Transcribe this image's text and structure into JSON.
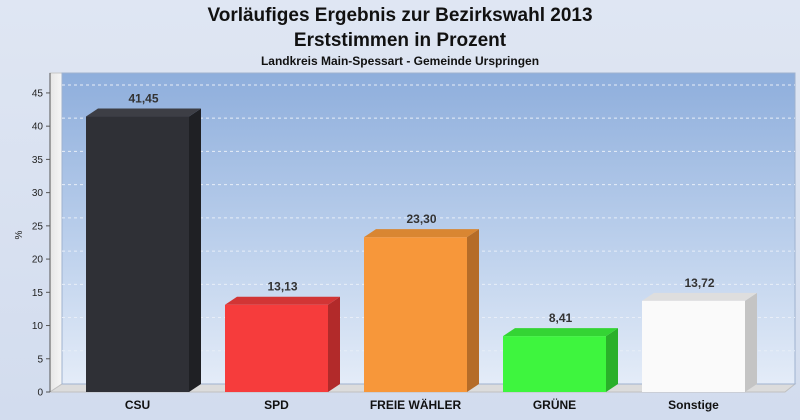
{
  "chart_data": {
    "type": "bar",
    "title": "Vorläufiges Ergebnis zur Bezirkswahl 2013",
    "subtitle": "Erststimmen in Prozent",
    "subsubtitle": "Landkreis Main-Spessart - Gemeinde Urspringen",
    "ylabel": "%",
    "xlabel": "",
    "ylim": [
      0,
      48
    ],
    "yticks": [
      "0",
      "5",
      "10",
      "15",
      "20",
      "25",
      "30",
      "35",
      "40",
      "45"
    ],
    "yticks_values": [
      0,
      5,
      10,
      15,
      20,
      25,
      30,
      35,
      40,
      45
    ],
    "grid": true,
    "categories": [
      "CSU",
      "SPD",
      "FREIE WÄHLER",
      "GRÜNE",
      "Sonstige"
    ],
    "values": [
      41.45,
      13.13,
      23.3,
      8.41,
      13.72
    ],
    "value_labels": [
      "41,45",
      "13,13",
      "23,30",
      "8,41",
      "13,72"
    ],
    "colors": [
      "#2f3036",
      "#f63c3c",
      "#f7973a",
      "#3ef53e",
      "#fafafa"
    ],
    "side_colors": [
      "#1f2024",
      "#b22a2a",
      "#b56c28",
      "#2ab02a",
      "#c4c4c4"
    ],
    "top_colors": [
      "#3d3e45",
      "#d23535",
      "#d98632",
      "#34d434",
      "#dedede"
    ]
  }
}
